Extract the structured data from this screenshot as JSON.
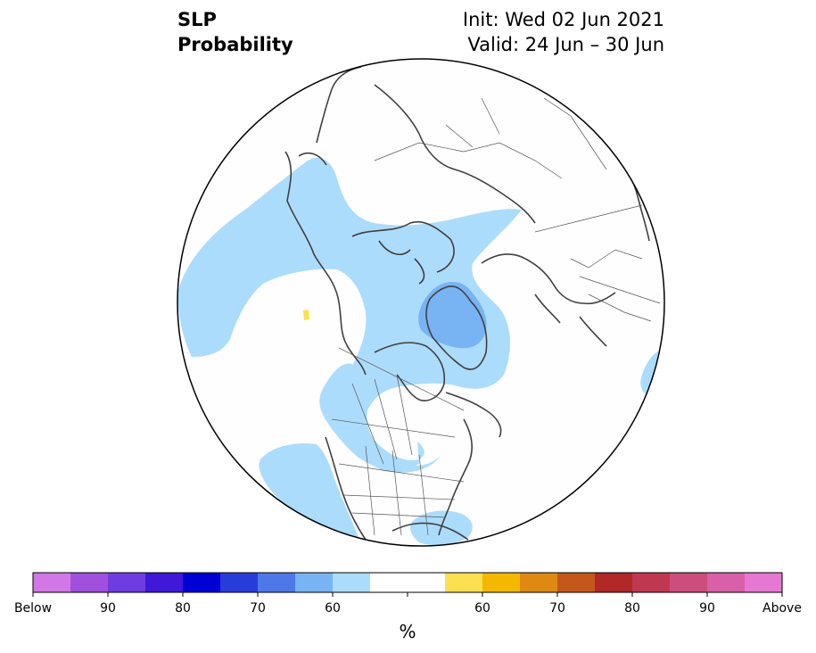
{
  "header": {
    "title_line1": "SLP",
    "title_line2": "Probability",
    "init_text": "Init: Wed 02 Jun 2021",
    "valid_text": "Valid: 24 Jun – 30 Jun"
  },
  "map": {
    "projection": "north-polar-stereographic",
    "features": [
      "coastlines",
      "country borders",
      "US state borders",
      "Canadian province borders"
    ],
    "anomaly_regions": [
      {
        "name": "north-pacific-alaska-arctic-below",
        "category": "below 50-60",
        "color": "#acdcfc"
      },
      {
        "name": "greenland-core-below",
        "category": "below 60-70",
        "color": "#78b4f4"
      },
      {
        "name": "canada-us-interior-below",
        "category": "below 50-60",
        "color": "#acdcfc"
      },
      {
        "name": "east-pacific-below",
        "category": "below 50-60",
        "color": "#acdcfc"
      },
      {
        "name": "gulf-of-mexico-below",
        "category": "below 50-60",
        "color": "#acdcfc"
      },
      {
        "name": "scandinavia-coast-below",
        "category": "below 50-60",
        "color": "#acdcfc"
      },
      {
        "name": "pacific-small-above",
        "category": "above 50-60",
        "color": "#fce050"
      }
    ]
  },
  "colorbar": {
    "colors": [
      "#d278e6",
      "#a050dc",
      "#6e3ce0",
      "#4018d8",
      "#0000d4",
      "#283cdc",
      "#4e78e8",
      "#78b4f4",
      "#acdcfc",
      "#ffffff",
      "#ffffff",
      "#fce050",
      "#f4b800",
      "#de8a12",
      "#c4581a",
      "#b02828",
      "#c03850",
      "#cc4e7c",
      "#d860a8",
      "#e678d4"
    ],
    "tick_labels": [
      "Below",
      "90",
      "80",
      "70",
      "60",
      "60",
      "70",
      "80",
      "90",
      "Above"
    ],
    "unit": "%"
  }
}
